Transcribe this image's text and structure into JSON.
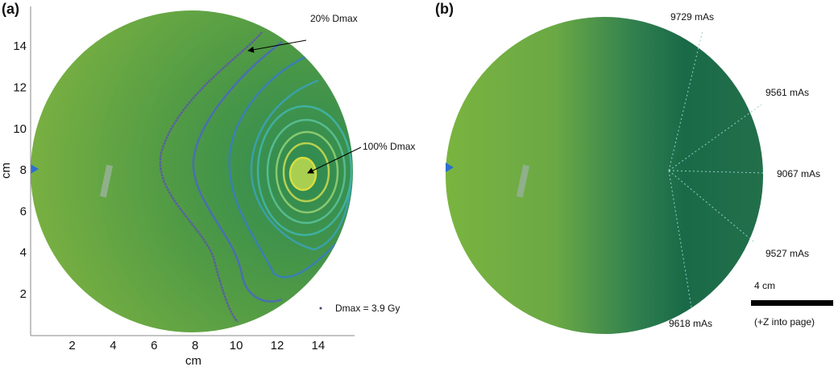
{
  "panel_a": {
    "label": "(a)",
    "x_axis": {
      "label": "cm",
      "ticks": [
        "2",
        "4",
        "6",
        "8",
        "10",
        "12",
        "14"
      ]
    },
    "y_axis": {
      "label": "cm",
      "ticks": [
        "2",
        "4",
        "6",
        "8",
        "10",
        "12",
        "14"
      ]
    },
    "annotations": [
      "20% Dmax",
      "100% Dmax"
    ],
    "dose_note": "Dmax = 3.9 Gy"
  },
  "panel_b": {
    "label": "(b)",
    "beam_labels": [
      "9729 mAs",
      "9561 mAs",
      "9067 mAs",
      "9527 mAs",
      "9618 mAs"
    ],
    "scale_bar": "4 cm",
    "direction_note": "(+Z into page)"
  }
}
